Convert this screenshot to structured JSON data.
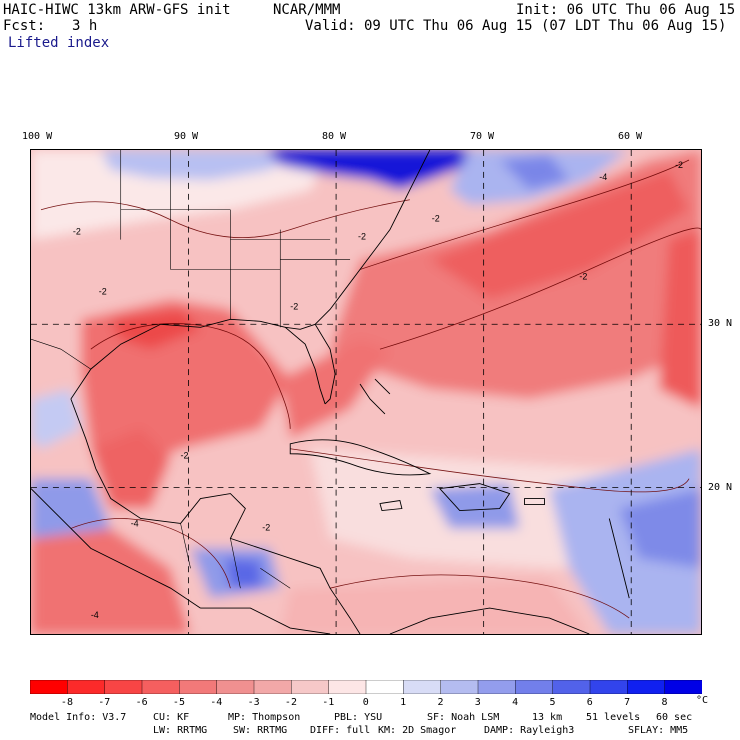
{
  "header": {
    "title": "HAIC-HIWC 13km ARW-GFS init",
    "org": "NCAR/MMM",
    "init": "Init: 06 UTC Thu 06 Aug 15",
    "fcst_label": "Fcst:",
    "fcst_value": "3 h",
    "valid": "Valid: 09 UTC Thu 06 Aug 15 (07 LDT Thu 06 Aug 15)",
    "field": "Lifted index"
  },
  "map": {
    "lon_labels": [
      "100 W",
      "90 W",
      "80 W",
      "70 W",
      "60 W"
    ],
    "lat_labels": [
      "30 N",
      "20 N"
    ],
    "contour_label": "-2",
    "contour_label_alt": "-4",
    "colors": {
      "deep_blue": "#1010d0",
      "mid_blue": "#6a78e6",
      "light_blue": "#b8c0f2",
      "white": "#fbfbff",
      "light_red": "#f8c4c4",
      "mid_red": "#f28a8a",
      "strong_red": "#ee5a5a"
    }
  },
  "colorbar": {
    "ticks": [
      "-8",
      "-7",
      "-6",
      "-5",
      "-4",
      "-3",
      "-2",
      "-1",
      "0",
      "1",
      "2",
      "3",
      "4",
      "5",
      "6",
      "7",
      "8"
    ],
    "unit": "°C",
    "colors": [
      "#ff0000",
      "#fc2a2a",
      "#f84545",
      "#f55f5f",
      "#f27979",
      "#f09090",
      "#f2a8a8",
      "#f6c8c8",
      "#fde6e6",
      "#ffffff",
      "#d8dcf6",
      "#b4bcf0",
      "#939ded",
      "#727feb",
      "#5262ea",
      "#3244ec",
      "#1020f0",
      "#0000e6"
    ]
  },
  "footer": {
    "line1": [
      "Model Info: V3.7",
      "CU: KF",
      "MP: Thompson",
      "PBL: YSU",
      "SF: Noah LSM",
      "13 km",
      "51 levels",
      "60 sec"
    ],
    "line2": [
      "LW: RRTMG",
      "SW: RRTMG",
      "DIFF: full",
      "KM: 2D Smagor",
      "DAMP: Rayleigh3",
      "SFLAY: MM5"
    ]
  }
}
